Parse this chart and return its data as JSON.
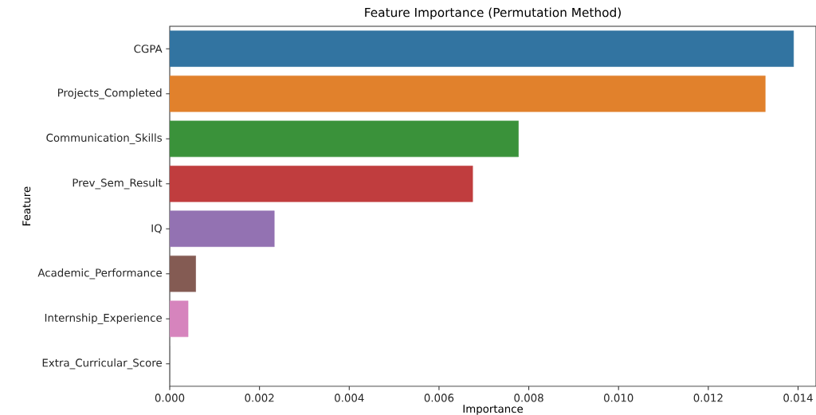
{
  "chart_data": {
    "type": "bar",
    "orientation": "horizontal",
    "title": "Feature Importance (Permutation Method)",
    "xlabel": "Importance",
    "ylabel": "Feature",
    "categories": [
      "CGPA",
      "Projects_Completed",
      "Communication_Skills",
      "Prev_Sem_Result",
      "IQ",
      "Academic_Performance",
      "Internship_Experience",
      "Extra_Curricular_Score"
    ],
    "values": [
      0.0139,
      0.01327,
      0.00777,
      0.00675,
      0.00233,
      0.00058,
      0.00041,
      0
    ],
    "colors": [
      "#3274a1",
      "#e1812c",
      "#3a923a",
      "#c03d3e",
      "#9372b2",
      "#845b53",
      "#d684bd",
      "#7f7f7f"
    ],
    "xlim": [
      0,
      0.0144
    ],
    "xticks": [
      {
        "value": 0,
        "label": "0.000"
      },
      {
        "value": 0.002,
        "label": "0.002"
      },
      {
        "value": 0.004,
        "label": "0.004"
      },
      {
        "value": 0.006,
        "label": "0.006"
      },
      {
        "value": 0.008,
        "label": "0.008"
      },
      {
        "value": 0.01,
        "label": "0.010"
      },
      {
        "value": 0.012,
        "label": "0.012"
      },
      {
        "value": 0.014,
        "label": "0.014"
      }
    ]
  }
}
